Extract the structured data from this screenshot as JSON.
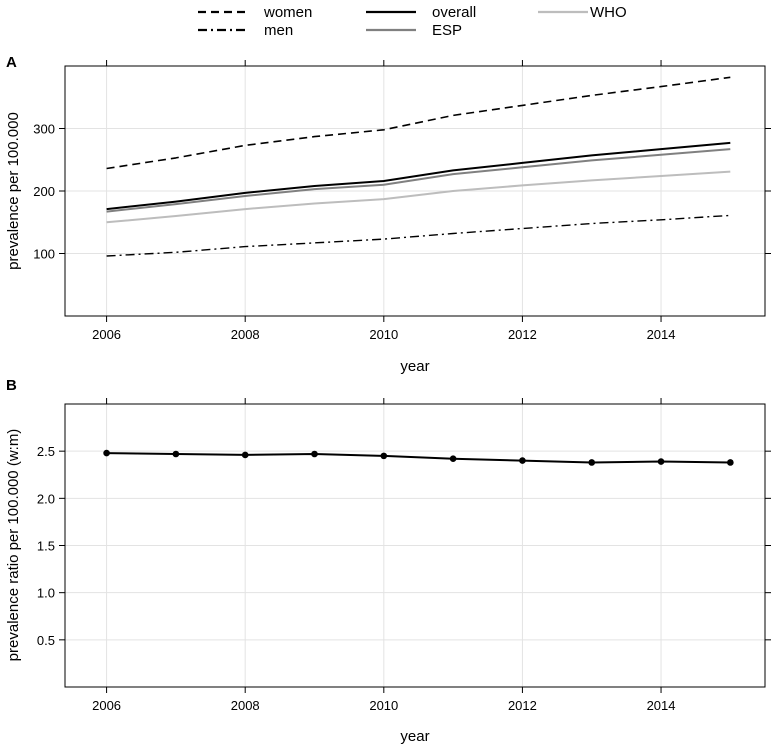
{
  "legend": {
    "entries": [
      {
        "name": "women",
        "color": "#000000",
        "dash": "dashed"
      },
      {
        "name": "men",
        "color": "#000000",
        "dash": "dotdash"
      },
      {
        "name": "overall",
        "color": "#000000",
        "dash": "solid"
      },
      {
        "name": "ESP",
        "color": "#808080",
        "dash": "solid"
      },
      {
        "name": "WHO",
        "color": "#bdbdbd",
        "dash": "solid"
      }
    ]
  },
  "chart_data": [
    {
      "panel": "A",
      "type": "line",
      "xlabel": "year",
      "ylabel": "prevalence per 100.000",
      "xlim": [
        2005.4,
        2015.5
      ],
      "ylim": [
        0,
        400
      ],
      "xticks": [
        2006,
        2008,
        2010,
        2012,
        2014
      ],
      "yticks": [
        100,
        200,
        300
      ],
      "grid": true,
      "x": [
        2006,
        2007,
        2008,
        2009,
        2010,
        2011,
        2012,
        2013,
        2014,
        2015
      ],
      "series": [
        {
          "name": "women",
          "color": "#000000",
          "dash": "dashed",
          "width": 1.6,
          "values": [
            236,
            253,
            273,
            287,
            298,
            321,
            337,
            353,
            367,
            382
          ]
        },
        {
          "name": "men",
          "color": "#000000",
          "dash": "dotdash",
          "width": 1.4,
          "values": [
            96,
            102,
            111,
            117,
            123,
            132,
            140,
            148,
            154,
            161
          ]
        },
        {
          "name": "overall",
          "color": "#000000",
          "dash": "solid",
          "width": 2,
          "values": [
            171,
            183,
            197,
            208,
            216,
            233,
            245,
            257,
            267,
            277
          ]
        },
        {
          "name": "ESP",
          "color": "#808080",
          "dash": "solid",
          "width": 2,
          "values": [
            167,
            179,
            192,
            203,
            210,
            227,
            238,
            249,
            258,
            267
          ]
        },
        {
          "name": "WHO",
          "color": "#bdbdbd",
          "dash": "solid",
          "width": 2,
          "values": [
            150,
            160,
            171,
            180,
            187,
            200,
            209,
            217,
            224,
            231
          ]
        }
      ]
    },
    {
      "panel": "B",
      "type": "line",
      "xlabel": "year",
      "ylabel": "prevalence ratio per 100.000 (w:m)",
      "xlim": [
        2005.4,
        2015.5
      ],
      "ylim": [
        0,
        3
      ],
      "xticks": [
        2006,
        2008,
        2010,
        2012,
        2014
      ],
      "yticks": [
        0.5,
        1.0,
        1.5,
        2.0,
        2.5
      ],
      "ytick_labels": [
        "0.5",
        "1.0",
        "1.5",
        "2.0",
        "2.5"
      ],
      "grid": true,
      "x": [
        2006,
        2007,
        2008,
        2009,
        2010,
        2011,
        2012,
        2013,
        2014,
        2015
      ],
      "series": [
        {
          "name": "ratio",
          "color": "#000000",
          "dash": "solid",
          "width": 2,
          "markers": true,
          "values": [
            2.48,
            2.47,
            2.46,
            2.47,
            2.45,
            2.42,
            2.4,
            2.38,
            2.39,
            2.38
          ]
        }
      ]
    }
  ]
}
